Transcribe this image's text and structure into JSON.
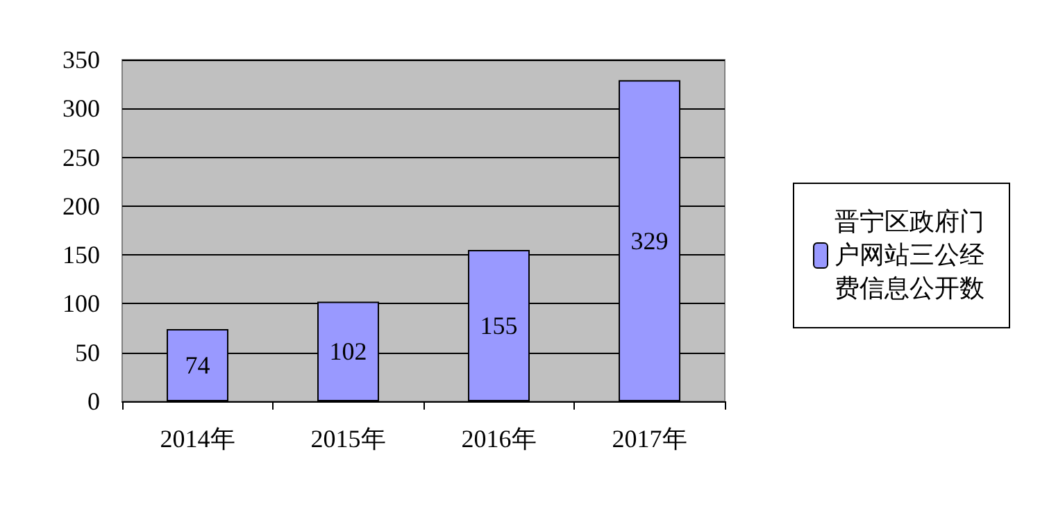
{
  "chart_data": {
    "type": "bar",
    "categories": [
      "2014年",
      "2015年",
      "2016年",
      "2017年"
    ],
    "series": [
      {
        "name": "晋宁区政府门户网站三公经费信息公开数",
        "color": "#9999ff",
        "values": [
          74,
          102,
          155,
          329
        ]
      }
    ],
    "ylim": [
      0,
      350
    ],
    "yticks": [
      0,
      50,
      100,
      150,
      200,
      250,
      300,
      350
    ],
    "grid": "y",
    "legend": "right",
    "data_labels": true
  }
}
